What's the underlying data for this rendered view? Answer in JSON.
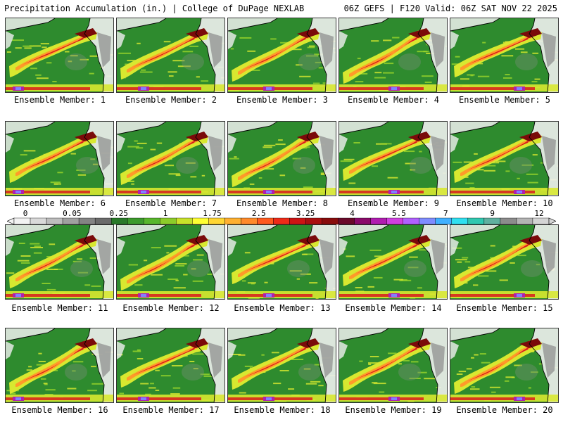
{
  "header": {
    "title_left": "Precipitation Accumulation (in.) | College of DuPage NEXLAB",
    "title_right": "06Z GEFS | F120 Valid: 06Z SAT NOV 22 2025"
  },
  "panels": [
    {
      "label": "Ensemble Member: 1"
    },
    {
      "label": "Ensemble Member: 2"
    },
    {
      "label": "Ensemble Member: 3"
    },
    {
      "label": "Ensemble Member: 4"
    },
    {
      "label": "Ensemble Member: 5"
    },
    {
      "label": "Ensemble Member: 6"
    },
    {
      "label": "Ensemble Member: 7"
    },
    {
      "label": "Ensemble Member: 8"
    },
    {
      "label": "Ensemble Member: 9"
    },
    {
      "label": "Ensemble Member: 10"
    },
    {
      "label": "Ensemble Member: 11"
    },
    {
      "label": "Ensemble Member: 12"
    },
    {
      "label": "Ensemble Member: 13"
    },
    {
      "label": "Ensemble Member: 14"
    },
    {
      "label": "Ensemble Member: 15"
    },
    {
      "label": "Ensemble Member: 16"
    },
    {
      "label": "Ensemble Member: 17"
    },
    {
      "label": "Ensemble Member: 18"
    },
    {
      "label": "Ensemble Member: 19"
    },
    {
      "label": "Ensemble Member: 20"
    }
  ],
  "colorbar": {
    "labels": [
      "0",
      "0.05",
      "0.25",
      "1",
      "1.75",
      "2.5",
      "3.25",
      "4",
      "5.5",
      "7",
      "9",
      "12"
    ],
    "colors": [
      "#f2f2f2",
      "#d9d9d9",
      "#bdbdbd",
      "#a0a0a0",
      "#848484",
      "#6b6b6b",
      "#2a7a2a",
      "#3c9a2c",
      "#58b62c",
      "#8ccc2a",
      "#c8e22a",
      "#ffff33",
      "#ffd633",
      "#ffb030",
      "#ff8a2a",
      "#ff5a1e",
      "#ee2a18",
      "#cc1414",
      "#aa1010",
      "#880c0c",
      "#6a0a2a",
      "#8a0a6a",
      "#b01cb0",
      "#d040e0",
      "#b060ff",
      "#7f8cff",
      "#40b0ff",
      "#30e0f0",
      "#30c8b0",
      "#60b0a0",
      "#8c8c8c",
      "#b4b4b4",
      "#d4d4d4"
    ]
  },
  "colors": {
    "ocean_base": "#2e8b2e",
    "land": "#f0f0f0",
    "band_yellow": "#d8e830",
    "band_orange": "#ff9a2a",
    "band_red": "#d81c1c",
    "band_darkred": "#7a0a0a",
    "band_magenta": "#b020b0",
    "band_purple": "#8080ff"
  }
}
